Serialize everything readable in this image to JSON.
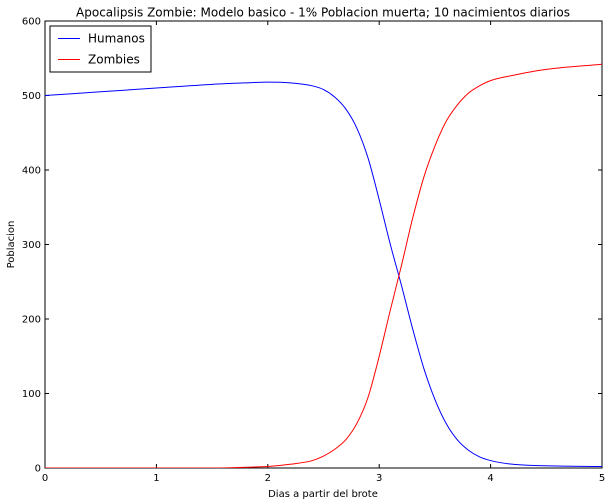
{
  "chart_data": {
    "type": "line",
    "title": "Apocalipsis Zombie: Modelo basico - 1% Poblacion muerta; 10 nacimientos diarios",
    "xlabel": "Dias a partir del brote",
    "ylabel": "Poblacion",
    "xlim": [
      0,
      5
    ],
    "ylim": [
      0,
      600
    ],
    "x_ticks": [
      "0",
      "1",
      "2",
      "3",
      "4",
      "5"
    ],
    "y_ticks": [
      "0",
      "100",
      "200",
      "300",
      "400",
      "500",
      "600"
    ],
    "grid": false,
    "legend_position": "top-left",
    "series": [
      {
        "name": "Humanos",
        "color": "#0000ff",
        "x": [
          0,
          0.5,
          1,
          1.5,
          1.8,
          2.0,
          2.2,
          2.4,
          2.5,
          2.6,
          2.7,
          2.8,
          2.9,
          3.0,
          3.1,
          3.2,
          3.3,
          3.4,
          3.5,
          3.6,
          3.7,
          3.8,
          3.9,
          4.0,
          4.2,
          4.5,
          5.0
        ],
        "values": [
          500,
          505,
          510,
          515,
          517,
          518,
          517,
          513,
          508,
          498,
          482,
          456,
          416,
          360,
          300,
          245,
          187,
          134,
          92,
          60,
          38,
          24,
          15,
          10,
          5,
          3,
          2
        ]
      },
      {
        "name": "Zombies",
        "color": "#ff0000",
        "x": [
          0,
          0.5,
          1,
          1.5,
          1.8,
          2.0,
          2.2,
          2.4,
          2.5,
          2.6,
          2.7,
          2.8,
          2.9,
          3.0,
          3.1,
          3.2,
          3.3,
          3.4,
          3.5,
          3.6,
          3.7,
          3.8,
          3.9,
          4.0,
          4.2,
          4.5,
          5.0
        ],
        "values": [
          0,
          0,
          0,
          0,
          1,
          2,
          5,
          10,
          16,
          25,
          38,
          60,
          95,
          150,
          212,
          272,
          335,
          390,
          432,
          465,
          487,
          503,
          513,
          520,
          527,
          535,
          542
        ]
      }
    ]
  }
}
